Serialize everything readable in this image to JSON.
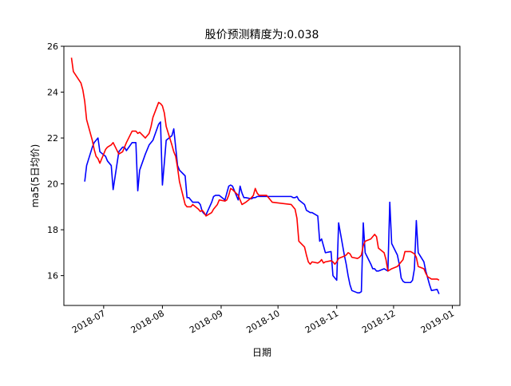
{
  "chart_data": {
    "type": "line",
    "title": "股价预测精度为:0.038",
    "xlabel": "日期",
    "ylabel": "ma5(5日均价)",
    "xlim": [
      "2018-06-10",
      "2019-01-05"
    ],
    "ylim": [
      14.7,
      26
    ],
    "xticks": [
      "2018-07-01",
      "2018-08-01",
      "2018-09-01",
      "2018-10-01",
      "2018-11-01",
      "2018-12-01",
      "2019-01-01"
    ],
    "xtick_labels": [
      "2018-07",
      "2018-08",
      "2018-09",
      "2018-10",
      "2018-11",
      "2018-12",
      "2019-01"
    ],
    "yticks": [
      16,
      18,
      20,
      22,
      24,
      26
    ],
    "ytick_labels": [
      "16",
      "18",
      "20",
      "22",
      "24",
      "26"
    ],
    "grid": false,
    "legend": "none",
    "series": [
      {
        "color": "#0000ff",
        "x": [
          "2018-06-21",
          "2018-06-22",
          "2018-06-25",
          "2018-06-26",
          "2018-06-27",
          "2018-06-28",
          "2018-06-29",
          "2018-07-02",
          "2018-07-03",
          "2018-07-04",
          "2018-07-05",
          "2018-07-06",
          "2018-07-09",
          "2018-07-10",
          "2018-07-11",
          "2018-07-12",
          "2018-07-13",
          "2018-07-16",
          "2018-07-17",
          "2018-07-18",
          "2018-07-19",
          "2018-07-20",
          "2018-07-23",
          "2018-07-24",
          "2018-07-25",
          "2018-07-26",
          "2018-07-27",
          "2018-07-30",
          "2018-07-31",
          "2018-08-01",
          "2018-08-02",
          "2018-08-03",
          "2018-08-06",
          "2018-08-07",
          "2018-08-08",
          "2018-08-09",
          "2018-08-10",
          "2018-08-13",
          "2018-08-14",
          "2018-08-15",
          "2018-08-16",
          "2018-08-17",
          "2018-08-20",
          "2018-08-21",
          "2018-08-22",
          "2018-08-23",
          "2018-08-24",
          "2018-08-27",
          "2018-08-28",
          "2018-08-29",
          "2018-08-30",
          "2018-08-31",
          "2018-09-03",
          "2018-09-04",
          "2018-09-05",
          "2018-09-06",
          "2018-09-07",
          "2018-09-10",
          "2018-09-11",
          "2018-09-12",
          "2018-09-13",
          "2018-09-14",
          "2018-09-17",
          "2018-09-18",
          "2018-09-19",
          "2018-09-20",
          "2018-09-21",
          "2018-09-25",
          "2018-09-26",
          "2018-09-27",
          "2018-09-28",
          "2018-10-08",
          "2018-10-09",
          "2018-10-10",
          "2018-10-11",
          "2018-10-12",
          "2018-10-15",
          "2018-10-16",
          "2018-10-17",
          "2018-10-18",
          "2018-10-19",
          "2018-10-22",
          "2018-10-23",
          "2018-10-24",
          "2018-10-25",
          "2018-10-26",
          "2018-10-29",
          "2018-10-30",
          "2018-10-31",
          "2018-11-01",
          "2018-11-02",
          "2018-11-05",
          "2018-11-06",
          "2018-11-07",
          "2018-11-08",
          "2018-11-09",
          "2018-11-12",
          "2018-11-13",
          "2018-11-14",
          "2018-11-15",
          "2018-11-16",
          "2018-11-19",
          "2018-11-20",
          "2018-11-21",
          "2018-11-22",
          "2018-11-23",
          "2018-11-26",
          "2018-11-27",
          "2018-11-28",
          "2018-11-29",
          "2018-11-30",
          "2018-12-03",
          "2018-12-04",
          "2018-12-05",
          "2018-12-06",
          "2018-12-07",
          "2018-12-10",
          "2018-12-11",
          "2018-12-12",
          "2018-12-13",
          "2018-12-14",
          "2018-12-17",
          "2018-12-18",
          "2018-12-19",
          "2018-12-20",
          "2018-12-21",
          "2018-12-24",
          "2018-12-25"
        ],
        "values": [
          20.1,
          20.8,
          21.6,
          21.8,
          21.9,
          22.0,
          21.4,
          21.2,
          21.0,
          20.9,
          20.8,
          19.75,
          21.4,
          21.5,
          21.6,
          21.6,
          21.45,
          21.8,
          21.8,
          21.8,
          19.7,
          20.6,
          21.3,
          21.5,
          21.7,
          21.8,
          21.9,
          22.6,
          22.7,
          19.95,
          20.9,
          21.9,
          22.1,
          22.4,
          21.6,
          20.8,
          20.6,
          20.35,
          19.4,
          19.4,
          19.3,
          19.2,
          19.2,
          19.1,
          18.8,
          18.7,
          18.65,
          19.2,
          19.45,
          19.5,
          19.5,
          19.5,
          19.3,
          19.6,
          19.9,
          19.95,
          19.9,
          19.3,
          19.9,
          19.6,
          19.4,
          19.4,
          19.35,
          19.4,
          19.4,
          19.45,
          19.45,
          19.45,
          19.45,
          19.45,
          19.45,
          19.45,
          19.4,
          19.4,
          19.45,
          19.3,
          19.1,
          18.85,
          18.8,
          18.75,
          18.75,
          18.6,
          17.5,
          17.6,
          17.3,
          17.0,
          17.05,
          16.0,
          15.9,
          15.8,
          18.3,
          16.9,
          16.5,
          16.0,
          15.6,
          15.35,
          15.25,
          15.25,
          15.3,
          18.3,
          17.0,
          16.5,
          16.3,
          16.3,
          16.2,
          16.2,
          16.3,
          16.25,
          16.2,
          19.2,
          17.4,
          16.9,
          16.5,
          15.9,
          15.75,
          15.7,
          15.7,
          15.8,
          16.3,
          18.4,
          17.0,
          16.6,
          16.2,
          15.9,
          15.6,
          15.35,
          15.4,
          15.2
        ]
      },
      {
        "color": "#ff0000",
        "x": [
          "2018-06-14",
          "2018-06-15",
          "2018-06-19",
          "2018-06-20",
          "2018-06-21",
          "2018-06-22",
          "2018-06-25",
          "2018-06-26",
          "2018-06-27",
          "2018-06-28",
          "2018-06-29",
          "2018-07-02",
          "2018-07-03",
          "2018-07-04",
          "2018-07-05",
          "2018-07-06",
          "2018-07-09",
          "2018-07-10",
          "2018-07-11",
          "2018-07-12",
          "2018-07-13",
          "2018-07-16",
          "2018-07-17",
          "2018-07-18",
          "2018-07-19",
          "2018-07-20",
          "2018-07-23",
          "2018-07-24",
          "2018-07-25",
          "2018-07-26",
          "2018-07-27",
          "2018-07-30",
          "2018-07-31",
          "2018-08-01",
          "2018-08-02",
          "2018-08-03",
          "2018-08-06",
          "2018-08-07",
          "2018-08-08",
          "2018-08-09",
          "2018-08-10",
          "2018-08-13",
          "2018-08-14",
          "2018-08-15",
          "2018-08-16",
          "2018-08-17",
          "2018-08-20",
          "2018-08-21",
          "2018-08-22",
          "2018-08-23",
          "2018-08-24",
          "2018-08-27",
          "2018-08-28",
          "2018-08-29",
          "2018-08-30",
          "2018-08-31",
          "2018-09-03",
          "2018-09-04",
          "2018-09-05",
          "2018-09-06",
          "2018-09-07",
          "2018-09-10",
          "2018-09-11",
          "2018-09-12",
          "2018-09-13",
          "2018-09-14",
          "2018-09-17",
          "2018-09-18",
          "2018-09-19",
          "2018-09-20",
          "2018-09-21",
          "2018-09-25",
          "2018-09-26",
          "2018-09-27",
          "2018-09-28",
          "2018-10-08",
          "2018-10-09",
          "2018-10-10",
          "2018-10-11",
          "2018-10-12",
          "2018-10-15",
          "2018-10-16",
          "2018-10-17",
          "2018-10-18",
          "2018-10-19",
          "2018-10-22",
          "2018-10-23",
          "2018-10-24",
          "2018-10-25",
          "2018-10-26",
          "2018-10-29",
          "2018-10-30",
          "2018-10-31",
          "2018-11-01",
          "2018-11-02",
          "2018-11-05",
          "2018-11-06",
          "2018-11-07",
          "2018-11-08",
          "2018-11-09",
          "2018-11-12",
          "2018-11-13",
          "2018-11-14",
          "2018-11-15",
          "2018-11-16",
          "2018-11-19",
          "2018-11-20",
          "2018-11-21",
          "2018-11-22",
          "2018-11-23",
          "2018-11-26",
          "2018-11-27",
          "2018-11-28",
          "2018-11-29",
          "2018-11-30",
          "2018-12-03",
          "2018-12-04",
          "2018-12-05",
          "2018-12-06",
          "2018-12-07",
          "2018-12-10",
          "2018-12-11",
          "2018-12-12",
          "2018-12-13",
          "2018-12-14",
          "2018-12-17",
          "2018-12-18",
          "2018-12-19",
          "2018-12-20",
          "2018-12-21",
          "2018-12-24",
          "2018-12-25"
        ],
        "values": [
          25.5,
          24.9,
          24.4,
          24.1,
          23.6,
          22.8,
          21.9,
          21.5,
          21.2,
          21.1,
          20.9,
          21.5,
          21.6,
          21.65,
          21.7,
          21.8,
          21.3,
          21.35,
          21.4,
          21.6,
          21.8,
          22.3,
          22.3,
          22.3,
          22.2,
          22.25,
          22.0,
          22.1,
          22.2,
          22.5,
          22.9,
          23.55,
          23.5,
          23.4,
          23.1,
          22.5,
          21.7,
          21.4,
          21.2,
          20.7,
          20.1,
          19.1,
          19.0,
          19.0,
          19.0,
          19.1,
          18.9,
          18.8,
          18.85,
          18.75,
          18.6,
          18.75,
          18.9,
          19.0,
          19.1,
          19.3,
          19.25,
          19.3,
          19.5,
          19.8,
          19.75,
          19.5,
          19.3,
          19.1,
          19.15,
          19.2,
          19.4,
          19.5,
          19.8,
          19.6,
          19.5,
          19.5,
          19.4,
          19.3,
          19.2,
          19.1,
          19.0,
          18.9,
          18.5,
          17.5,
          17.25,
          16.9,
          16.6,
          16.5,
          16.6,
          16.55,
          16.6,
          16.7,
          16.55,
          16.6,
          16.65,
          16.6,
          16.5,
          16.6,
          16.75,
          16.85,
          16.9,
          17.0,
          16.95,
          16.8,
          16.75,
          16.8,
          16.9,
          17.3,
          17.5,
          17.6,
          17.7,
          17.8,
          17.7,
          17.2,
          17.0,
          16.7,
          16.2,
          16.25,
          16.3,
          16.4,
          16.5,
          16.6,
          16.7,
          17.05,
          17.05,
          17.0,
          16.95,
          16.8,
          16.4,
          16.3,
          16.1,
          15.95,
          15.9,
          15.85,
          15.85,
          15.8
        ]
      }
    ]
  }
}
